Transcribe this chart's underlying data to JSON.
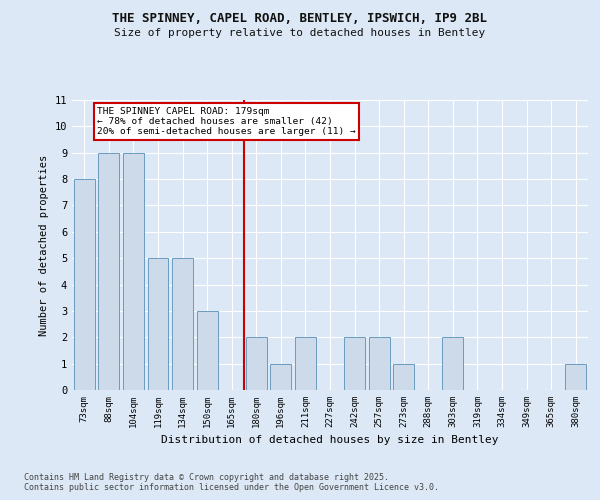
{
  "title": "THE SPINNEY, CAPEL ROAD, BENTLEY, IPSWICH, IP9 2BL",
  "subtitle": "Size of property relative to detached houses in Bentley",
  "xlabel": "Distribution of detached houses by size in Bentley",
  "ylabel": "Number of detached properties",
  "categories": [
    "73sqm",
    "88sqm",
    "104sqm",
    "119sqm",
    "134sqm",
    "150sqm",
    "165sqm",
    "180sqm",
    "196sqm",
    "211sqm",
    "227sqm",
    "242sqm",
    "257sqm",
    "273sqm",
    "288sqm",
    "303sqm",
    "319sqm",
    "334sqm",
    "349sqm",
    "365sqm",
    "380sqm"
  ],
  "values": [
    8,
    9,
    9,
    5,
    5,
    3,
    0,
    2,
    1,
    2,
    0,
    2,
    2,
    1,
    0,
    2,
    0,
    0,
    0,
    0,
    1
  ],
  "bar_color": "#ccdaea",
  "bar_edge_color": "#6a9cc0",
  "highlight_index": 7,
  "highlight_line_color": "#cc0000",
  "annotation_text": "THE SPINNEY CAPEL ROAD: 179sqm\n← 78% of detached houses are smaller (42)\n20% of semi-detached houses are larger (11) →",
  "annotation_box_color": "#cc0000",
  "ylim": [
    0,
    11
  ],
  "yticks": [
    0,
    1,
    2,
    3,
    4,
    5,
    6,
    7,
    8,
    9,
    10,
    11
  ],
  "footer_line1": "Contains HM Land Registry data © Crown copyright and database right 2025.",
  "footer_line2": "Contains public sector information licensed under the Open Government Licence v3.0.",
  "background_color": "#dce8f5",
  "plot_background_color": "#dce8f5"
}
